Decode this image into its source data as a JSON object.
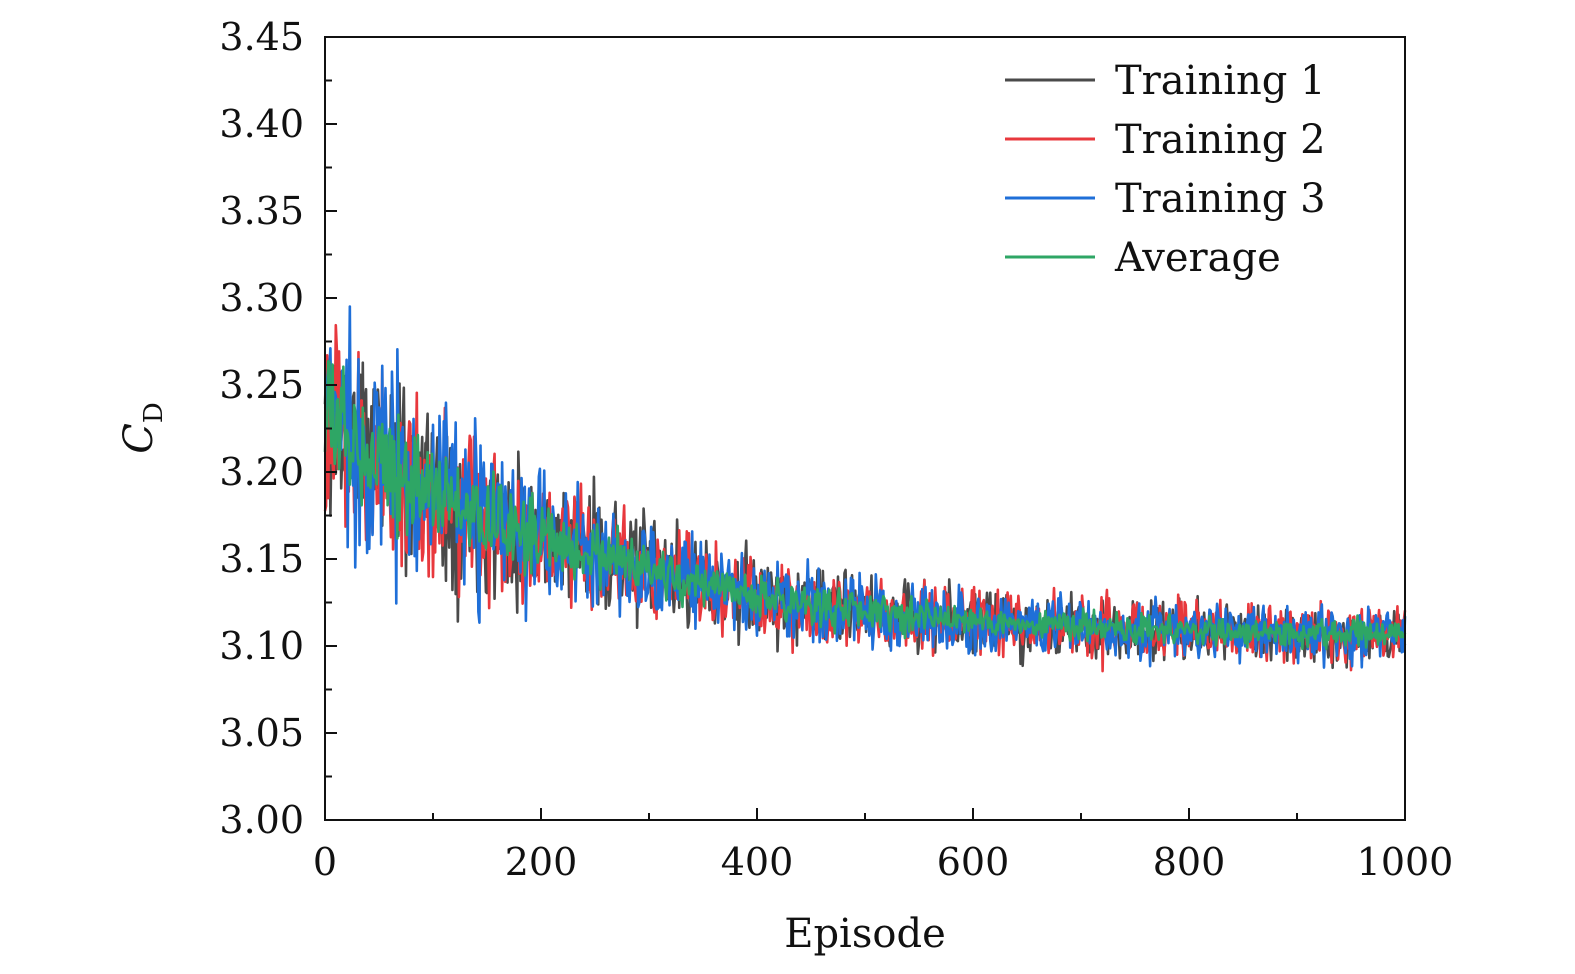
{
  "chart_data": {
    "type": "line",
    "xlabel": "Episode",
    "ylabel_main": "C",
    "ylabel_sub": "D",
    "xlim": [
      0,
      1000
    ],
    "ylim": [
      3.0,
      3.45
    ],
    "x_ticks": [
      0,
      200,
      400,
      600,
      800,
      1000
    ],
    "x_tick_labels": [
      "0",
      "200",
      "400",
      "600",
      "800",
      "1000"
    ],
    "y_ticks": [
      3.0,
      3.05,
      3.1,
      3.15,
      3.2,
      3.25,
      3.3,
      3.35,
      3.4,
      3.45
    ],
    "y_tick_labels": [
      "3.00",
      "3.05",
      "3.10",
      "3.15",
      "3.20",
      "3.25",
      "3.30",
      "3.35",
      "3.40",
      "3.45"
    ],
    "legend_position": "top-right",
    "grid": false,
    "series": [
      {
        "name": "Training 1",
        "color": "#4a4a4a",
        "x": [
          0,
          25,
          50,
          75,
          100,
          125,
          150,
          175,
          200,
          225,
          250,
          275,
          300,
          325,
          350,
          375,
          400,
          425,
          450,
          475,
          500,
          525,
          550,
          575,
          600,
          625,
          650,
          675,
          700,
          725,
          750,
          775,
          800,
          825,
          850,
          875,
          900,
          925,
          950,
          975,
          1000
        ],
        "y": [
          3.23,
          3.22,
          3.21,
          3.2,
          3.19,
          3.18,
          3.175,
          3.17,
          3.165,
          3.16,
          3.155,
          3.15,
          3.145,
          3.14,
          3.135,
          3.13,
          3.13,
          3.125,
          3.125,
          3.12,
          3.12,
          3.12,
          3.118,
          3.115,
          3.115,
          3.113,
          3.112,
          3.11,
          3.11,
          3.11,
          3.11,
          3.108,
          3.108,
          3.108,
          3.107,
          3.107,
          3.107,
          3.106,
          3.106,
          3.106,
          3.106
        ],
        "noise_amplitude": [
          0.09,
          0.09,
          0.085,
          0.08,
          0.075,
          0.07,
          0.065,
          0.06,
          0.055,
          0.05,
          0.048,
          0.045,
          0.043,
          0.04,
          0.038,
          0.036,
          0.035,
          0.034,
          0.033,
          0.032,
          0.031,
          0.03,
          0.03,
          0.029,
          0.028,
          0.028,
          0.027,
          0.027,
          0.026,
          0.026,
          0.025,
          0.025,
          0.025,
          0.024,
          0.024,
          0.024,
          0.023,
          0.023,
          0.023,
          0.023,
          0.022
        ]
      },
      {
        "name": "Training 2",
        "color": "#e8383d",
        "x": [
          0,
          25,
          50,
          75,
          100,
          125,
          150,
          175,
          200,
          225,
          250,
          275,
          300,
          325,
          350,
          375,
          400,
          425,
          450,
          475,
          500,
          525,
          550,
          575,
          600,
          625,
          650,
          675,
          700,
          725,
          750,
          775,
          800,
          825,
          850,
          875,
          900,
          925,
          950,
          975,
          1000
        ],
        "y": [
          3.22,
          3.215,
          3.205,
          3.195,
          3.185,
          3.178,
          3.172,
          3.166,
          3.16,
          3.155,
          3.15,
          3.146,
          3.142,
          3.138,
          3.134,
          3.13,
          3.128,
          3.126,
          3.124,
          3.122,
          3.12,
          3.119,
          3.118,
          3.116,
          3.115,
          3.114,
          3.113,
          3.112,
          3.111,
          3.11,
          3.11,
          3.109,
          3.109,
          3.108,
          3.108,
          3.108,
          3.107,
          3.107,
          3.107,
          3.107,
          3.107
        ],
        "noise_amplitude": [
          0.09,
          0.09,
          0.085,
          0.08,
          0.075,
          0.07,
          0.065,
          0.06,
          0.055,
          0.05,
          0.048,
          0.045,
          0.043,
          0.04,
          0.038,
          0.036,
          0.035,
          0.034,
          0.033,
          0.032,
          0.031,
          0.03,
          0.03,
          0.029,
          0.028,
          0.028,
          0.027,
          0.027,
          0.026,
          0.026,
          0.025,
          0.025,
          0.025,
          0.024,
          0.024,
          0.024,
          0.023,
          0.023,
          0.023,
          0.023,
          0.022
        ]
      },
      {
        "name": "Training 3",
        "color": "#1f6fd8",
        "x": [
          0,
          25,
          50,
          75,
          100,
          125,
          150,
          175,
          200,
          225,
          250,
          275,
          300,
          325,
          350,
          375,
          400,
          425,
          450,
          475,
          500,
          525,
          550,
          575,
          600,
          625,
          650,
          675,
          700,
          725,
          750,
          775,
          800,
          825,
          850,
          875,
          900,
          925,
          950,
          975,
          1000
        ],
        "y": [
          3.235,
          3.225,
          3.212,
          3.2,
          3.19,
          3.181,
          3.174,
          3.168,
          3.162,
          3.157,
          3.152,
          3.148,
          3.143,
          3.139,
          3.135,
          3.131,
          3.129,
          3.126,
          3.124,
          3.122,
          3.12,
          3.119,
          3.117,
          3.116,
          3.115,
          3.114,
          3.113,
          3.112,
          3.111,
          3.11,
          3.11,
          3.109,
          3.109,
          3.109,
          3.108,
          3.108,
          3.108,
          3.107,
          3.107,
          3.107,
          3.107
        ],
        "noise_amplitude": [
          0.1,
          0.1,
          0.095,
          0.09,
          0.08,
          0.075,
          0.07,
          0.062,
          0.056,
          0.05,
          0.048,
          0.046,
          0.044,
          0.041,
          0.039,
          0.037,
          0.036,
          0.035,
          0.034,
          0.033,
          0.032,
          0.031,
          0.03,
          0.029,
          0.029,
          0.028,
          0.028,
          0.027,
          0.027,
          0.026,
          0.026,
          0.025,
          0.025,
          0.025,
          0.024,
          0.024,
          0.024,
          0.023,
          0.023,
          0.023,
          0.023
        ]
      },
      {
        "name": "Average",
        "color": "#2ea665",
        "x": [
          0,
          25,
          50,
          75,
          100,
          125,
          150,
          175,
          200,
          225,
          250,
          275,
          300,
          325,
          350,
          375,
          400,
          425,
          450,
          475,
          500,
          525,
          550,
          575,
          600,
          625,
          650,
          675,
          700,
          725,
          750,
          775,
          800,
          825,
          850,
          875,
          900,
          925,
          950,
          975,
          1000
        ],
        "y": [
          3.23,
          3.22,
          3.21,
          3.198,
          3.188,
          3.179,
          3.173,
          3.168,
          3.162,
          3.157,
          3.152,
          3.148,
          3.143,
          3.139,
          3.135,
          3.13,
          3.129,
          3.126,
          3.124,
          3.122,
          3.12,
          3.119,
          3.118,
          3.116,
          3.115,
          3.114,
          3.113,
          3.112,
          3.111,
          3.11,
          3.11,
          3.109,
          3.109,
          3.108,
          3.108,
          3.108,
          3.107,
          3.107,
          3.107,
          3.107,
          3.107
        ],
        "noise_amplitude": [
          0.05,
          0.05,
          0.048,
          0.045,
          0.042,
          0.038,
          0.035,
          0.032,
          0.03,
          0.028,
          0.026,
          0.024,
          0.022,
          0.021,
          0.02,
          0.019,
          0.018,
          0.017,
          0.017,
          0.016,
          0.016,
          0.015,
          0.015,
          0.015,
          0.014,
          0.014,
          0.014,
          0.013,
          0.013,
          0.013,
          0.013,
          0.012,
          0.012,
          0.012,
          0.012,
          0.012,
          0.012,
          0.012,
          0.012,
          0.012,
          0.012
        ]
      }
    ]
  }
}
